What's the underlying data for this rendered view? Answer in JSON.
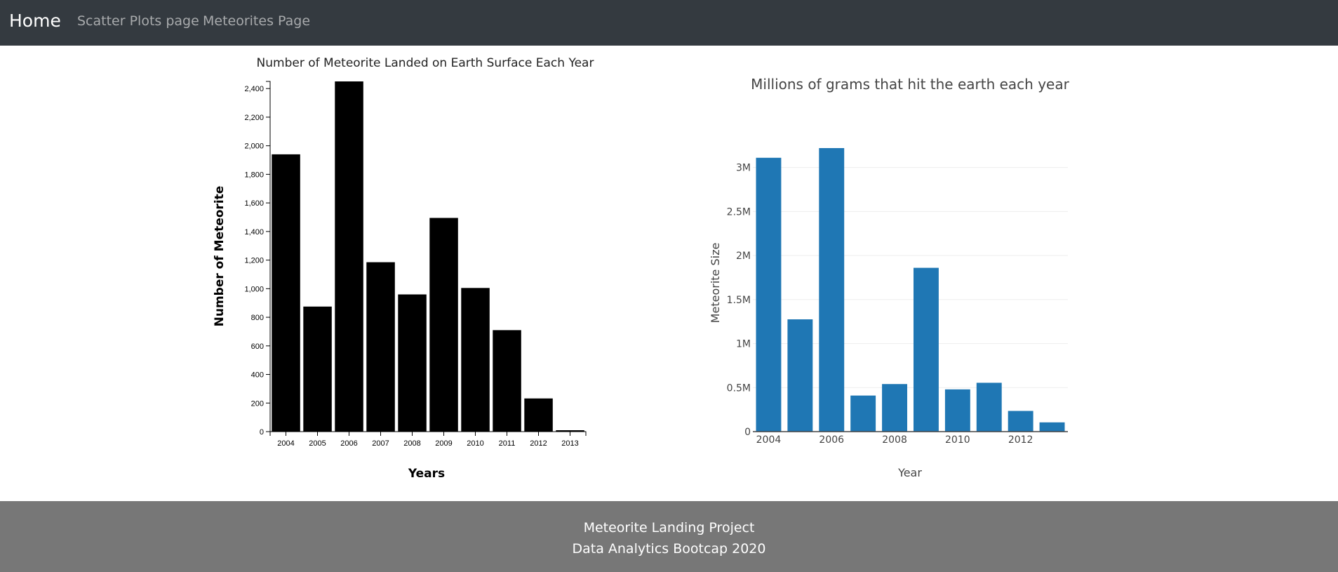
{
  "nav": {
    "brand": "Home",
    "links": [
      "Scatter Plots page",
      "Meteorites Page"
    ]
  },
  "chart_data": [
    {
      "type": "bar",
      "title": "Number of Meteorite Landed on Earth Surface Each Year",
      "xlabel": "Years",
      "ylabel": "Number of Meteorite",
      "categories": [
        "2004",
        "2005",
        "2006",
        "2007",
        "2008",
        "2009",
        "2010",
        "2011",
        "2012",
        "2013"
      ],
      "values": [
        1940,
        875,
        2450,
        1185,
        960,
        1495,
        1005,
        710,
        232,
        10
      ],
      "ylim": [
        0,
        2450
      ],
      "yticks": [
        0,
        200,
        400,
        600,
        800,
        1000,
        1200,
        1400,
        1600,
        1800,
        2000,
        2200,
        2400
      ],
      "ytick_labels": [
        "0",
        "200",
        "400",
        "600",
        "800",
        "1,000",
        "1,200",
        "1,400",
        "1,600",
        "1,800",
        "2,000",
        "2,200",
        "2,400"
      ],
      "bar_color": "#000000",
      "grid": false
    },
    {
      "type": "bar",
      "title": "Millions of grams that hit the earth each year",
      "xlabel": "Year",
      "ylabel": "Meteorite Size",
      "x": [
        2004,
        2005,
        2006,
        2007,
        2008,
        2009,
        2010,
        2011,
        2012,
        2013
      ],
      "values": [
        3110000,
        1275000,
        3220000,
        410000,
        540000,
        1860000,
        480000,
        555000,
        235000,
        105000
      ],
      "ylim": [
        0,
        3220000
      ],
      "yticks": [
        0,
        500000,
        1000000,
        1500000,
        2000000,
        2500000,
        3000000
      ],
      "ytick_labels": [
        "0",
        "0.5M",
        "1M",
        "1.5M",
        "2M",
        "2.5M",
        "3M"
      ],
      "xticks": [
        2004,
        2006,
        2008,
        2010,
        2012
      ],
      "xtick_labels": [
        "2004",
        "2006",
        "2008",
        "2010",
        "2012"
      ],
      "bar_color": "#1f77b4",
      "grid": true
    }
  ],
  "footer": {
    "line1": "Meteorite Landing Project",
    "line2": "Data Analytics Bootcap 2020"
  }
}
